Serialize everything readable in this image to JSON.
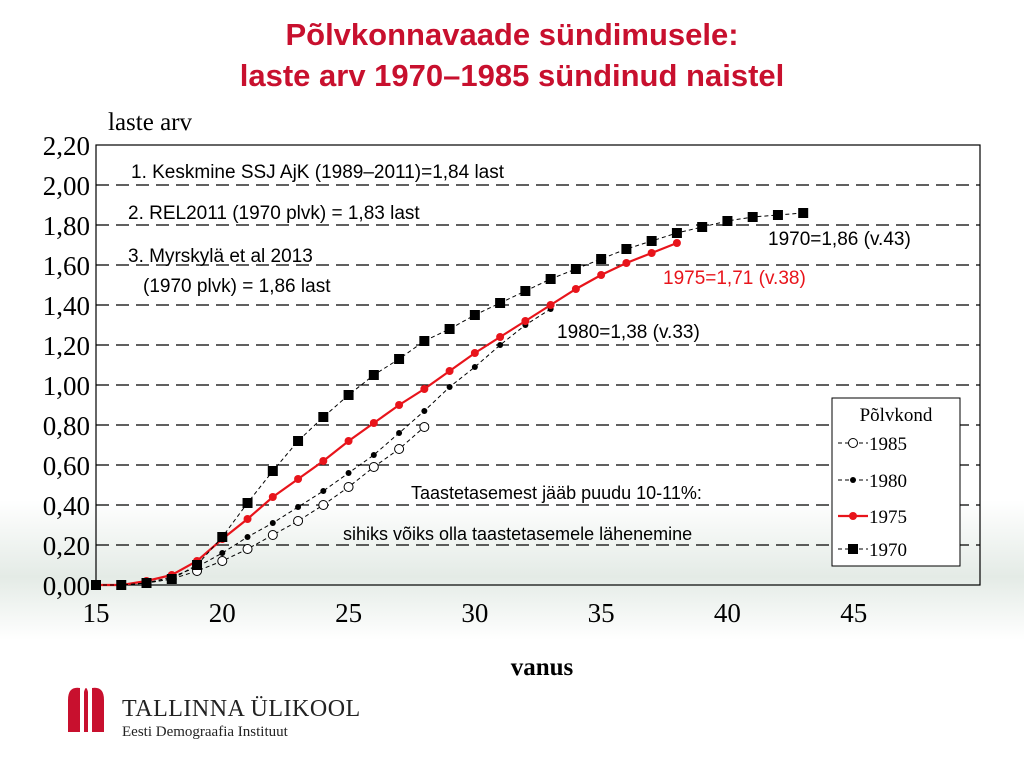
{
  "slide": {
    "title_line1": "Põlvkonnavaade sündimusele:",
    "title_line2": "laste arv 1970–1985 sündinud naistel"
  },
  "footer": {
    "org_name": "TALLINNA ÜLIKOOL",
    "org_sub": "Eesti Demograafia Instituut"
  },
  "colors": {
    "title": "#c8102e",
    "series_1975": "#e8141b",
    "black": "#000000"
  },
  "chart_data": {
    "type": "line",
    "ylabel": "laste arv",
    "xlabel": "vanus",
    "xlim": [
      15,
      50
    ],
    "ylim": [
      0,
      2.2
    ],
    "x_ticks": [
      15,
      20,
      25,
      30,
      35,
      40,
      45
    ],
    "y_ticks": [
      0,
      0.2,
      0.4,
      0.6,
      0.8,
      1.0,
      1.2,
      1.4,
      1.6,
      1.8,
      2.0,
      2.2
    ],
    "y_tick_labels": [
      "0,00",
      "0,20",
      "0,40",
      "0,60",
      "0,80",
      "1,00",
      "1,20",
      "1,40",
      "1,60",
      "1,80",
      "2,00",
      "2,20"
    ],
    "grid": "horizontal-dashed",
    "legend": {
      "title": "Põlvkond",
      "placement": "bottom-right",
      "entries": [
        "1985",
        "1980",
        "1975",
        "1970"
      ]
    },
    "notes": [
      "1. Keskmine SSJ AjK (1989–2011)=1,84 last",
      "2. REL2011 (1970 plvk) = 1,83 last",
      "3. Myrskylä et al 2013",
      "(1970 plvk) = 1,86 last"
    ],
    "middle_text": [
      "Taastetasemest jääb puudu 10-11%:",
      "sihiks võiks olla taastetasemele lähenemine"
    ],
    "end_labels": {
      "1970": "1970=1,86 (v.43)",
      "1975": "1975=1,71 (v.38)",
      "1980": "1980=1,38 (v.33)"
    },
    "series": [
      {
        "name": "1970",
        "marker": "square",
        "color": "#000000",
        "x": [
          15,
          16,
          17,
          18,
          19,
          20,
          21,
          22,
          23,
          24,
          25,
          26,
          27,
          28,
          29,
          30,
          31,
          32,
          33,
          34,
          35,
          36,
          37,
          38,
          39,
          40,
          41,
          42,
          43
        ],
        "values": [
          0.0,
          0.0,
          0.01,
          0.03,
          0.1,
          0.24,
          0.41,
          0.57,
          0.72,
          0.84,
          0.95,
          1.05,
          1.13,
          1.22,
          1.28,
          1.35,
          1.41,
          1.47,
          1.53,
          1.58,
          1.63,
          1.68,
          1.72,
          1.76,
          1.79,
          1.82,
          1.84,
          1.85,
          1.86
        ]
      },
      {
        "name": "1975",
        "marker": "circle-filled",
        "color": "#e8141b",
        "x": [
          15,
          16,
          17,
          18,
          19,
          20,
          21,
          22,
          23,
          24,
          25,
          26,
          27,
          28,
          29,
          30,
          31,
          32,
          33,
          34,
          35,
          36,
          37,
          38
        ],
        "values": [
          0.0,
          0.0,
          0.02,
          0.05,
          0.12,
          0.23,
          0.33,
          0.44,
          0.53,
          0.62,
          0.72,
          0.81,
          0.9,
          0.98,
          1.07,
          1.16,
          1.24,
          1.32,
          1.4,
          1.48,
          1.55,
          1.61,
          1.66,
          1.71
        ]
      },
      {
        "name": "1980",
        "marker": "dot",
        "color": "#000000",
        "x": [
          15,
          16,
          17,
          18,
          19,
          20,
          21,
          22,
          23,
          24,
          25,
          26,
          27,
          28,
          29,
          30,
          31,
          32,
          33
        ],
        "values": [
          0.0,
          0.0,
          0.01,
          0.04,
          0.09,
          0.16,
          0.24,
          0.31,
          0.39,
          0.47,
          0.56,
          0.65,
          0.76,
          0.87,
          0.99,
          1.09,
          1.2,
          1.3,
          1.38
        ]
      },
      {
        "name": "1985",
        "marker": "circle-open",
        "color": "#000000",
        "x": [
          15,
          16,
          17,
          18,
          19,
          20,
          21,
          22,
          23,
          24,
          25,
          26,
          27,
          28
        ],
        "values": [
          0.0,
          0.0,
          0.01,
          0.03,
          0.07,
          0.12,
          0.18,
          0.25,
          0.32,
          0.4,
          0.49,
          0.59,
          0.68,
          0.79
        ]
      }
    ]
  }
}
